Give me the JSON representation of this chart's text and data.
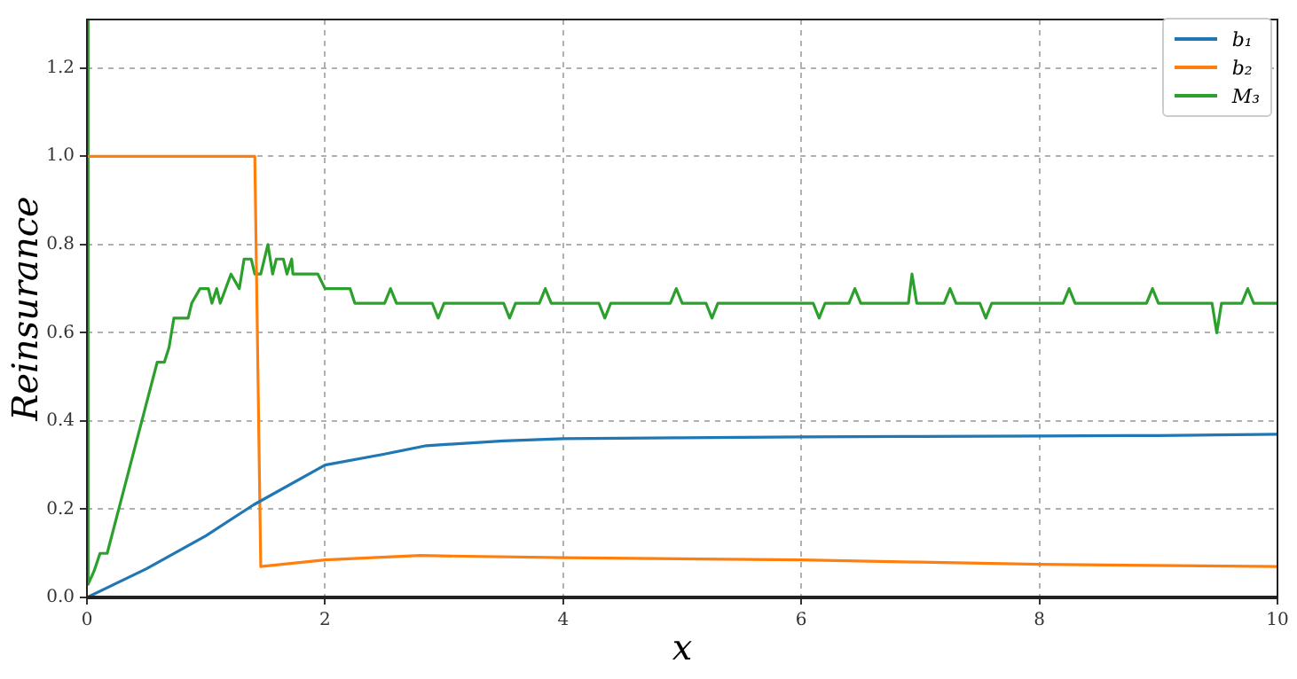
{
  "chart_data": {
    "type": "line",
    "xlabel": "x",
    "ylabel": "Reinsurance",
    "xlim": [
      0,
      10
    ],
    "ylim": [
      0,
      1.31
    ],
    "xticks": [
      0,
      2,
      4,
      6,
      8,
      10
    ],
    "yticks": [
      {
        "value": 0,
        "label": "0.0"
      },
      {
        "value": 0.2,
        "label": "0.2"
      },
      {
        "value": 0.4,
        "label": "0.4"
      },
      {
        "value": 0.6,
        "label": "0.6"
      },
      {
        "value": 0.8,
        "label": "0.8"
      },
      {
        "value": 1,
        "label": "1.0"
      },
      {
        "value": 1.2,
        "label": "1.2"
      }
    ],
    "grid": true,
    "legend": "top right",
    "marker": "none",
    "line_style": "solid",
    "series": [
      {
        "name": "b₁",
        "color": "#1f77b4",
        "x": [
          0,
          0.5,
          1,
          1.4,
          2,
          2.5,
          2.85,
          3.5,
          4,
          5,
          6,
          7,
          8,
          9,
          10
        ],
        "values": [
          0,
          0.065,
          0.14,
          0.21,
          0.3,
          0.325,
          0.344,
          0.355,
          0.36,
          0.362,
          0.364,
          0.365,
          0.366,
          0.367,
          0.37
        ]
      },
      {
        "name": "b₂",
        "color": "#ff7f0e",
        "x": [
          0,
          1.41,
          1.46,
          2,
          2.8,
          4,
          6,
          7,
          8,
          10
        ],
        "values": [
          1,
          1,
          0.07,
          0.085,
          0.095,
          0.09,
          0.085,
          0.08,
          0.075,
          0.07
        ]
      },
      {
        "name": "M₃",
        "color": "#2ca02c",
        "x": [
          0,
          0.01,
          0.06,
          0.11,
          0.17,
          0.59,
          0.65,
          0.69,
          0.73,
          0.85,
          0.88,
          0.95,
          1.02,
          1.05,
          1.09,
          1.12,
          1.21,
          1.28,
          1.32,
          1.38,
          1.41,
          1.46,
          1.52,
          1.56,
          1.59,
          1.65,
          1.68,
          1.72,
          1.73,
          1.94,
          2.0,
          2.21,
          2.25,
          2.5,
          2.55,
          2.6,
          2.9,
          2.95,
          3.0,
          3.5,
          3.55,
          3.6,
          3.8,
          3.85,
          3.9,
          4.3,
          4.35,
          4.4,
          4.9,
          4.95,
          5.0,
          5.2,
          5.25,
          5.3,
          6.1,
          6.15,
          6.2,
          6.4,
          6.45,
          6.5,
          6.9,
          6.93,
          6.97,
          7.2,
          7.25,
          7.3,
          7.5,
          7.55,
          7.6,
          8.2,
          8.25,
          8.3,
          8.9,
          8.95,
          9.0,
          9.45,
          9.49,
          9.53,
          9.7,
          9.75,
          9.8,
          10
        ],
        "values": [
          1.31,
          0.03,
          0.06,
          0.1,
          0.1,
          0.533,
          0.533,
          0.567,
          0.633,
          0.633,
          0.667,
          0.7,
          0.7,
          0.667,
          0.7,
          0.667,
          0.733,
          0.7,
          0.767,
          0.767,
          0.733,
          0.733,
          0.8,
          0.733,
          0.767,
          0.767,
          0.733,
          0.767,
          0.733,
          0.733,
          0.7,
          0.7,
          0.667,
          0.667,
          0.7,
          0.667,
          0.667,
          0.633,
          0.667,
          0.667,
          0.633,
          0.667,
          0.667,
          0.7,
          0.667,
          0.667,
          0.633,
          0.667,
          0.667,
          0.7,
          0.667,
          0.667,
          0.633,
          0.667,
          0.667,
          0.633,
          0.667,
          0.667,
          0.7,
          0.667,
          0.667,
          0.733,
          0.667,
          0.667,
          0.7,
          0.667,
          0.667,
          0.633,
          0.667,
          0.667,
          0.7,
          0.667,
          0.667,
          0.7,
          0.667,
          0.667,
          0.6,
          0.667,
          0.667,
          0.7,
          0.667,
          0.667
        ]
      }
    ]
  }
}
